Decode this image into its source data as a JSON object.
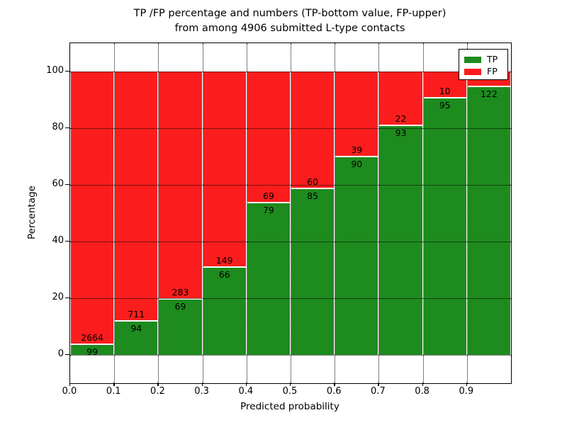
{
  "title": {
    "line1": "TP /FP percentage and numbers (TP-bottom value, FP-upper)",
    "line2": "from among 4906 submitted L-type contacts"
  },
  "colors": {
    "tp_green": "#1e8b1e",
    "fp_red": "#fb1d1d",
    "axis": "#000000",
    "background": "#ffffff"
  },
  "legend": {
    "entries": [
      {
        "label": "TP",
        "color": "#1e8b1e"
      },
      {
        "label": "FP",
        "color": "#fb1d1d"
      }
    ],
    "position": "upper right"
  },
  "chart_data": {
    "type": "bar",
    "stacked": true,
    "normalized_to_100_percent": true,
    "title": "TP /FP percentage and numbers (TP-bottom value, FP-upper) from among 4906 submitted L-type contacts",
    "total_contacts": 4906,
    "xlabel": "Predicted probability",
    "ylabel": "Percentage",
    "xlim": [
      0.0,
      1.0
    ],
    "ylim": [
      -10,
      110
    ],
    "xticks": [
      "0.0",
      "0.1",
      "0.2",
      "0.3",
      "0.4",
      "0.5",
      "0.6",
      "0.7",
      "0.8",
      "0.9"
    ],
    "yticks": [
      0,
      20,
      40,
      60,
      80,
      100
    ],
    "grid": "dotted, both axes, drawn over bars",
    "bin_width": 0.1,
    "series": [
      {
        "name": "TP",
        "color": "#1e8b1e",
        "counts": [
          99,
          94,
          69,
          66,
          79,
          85,
          90,
          93,
          95,
          122
        ],
        "pct": [
          3.58,
          11.68,
          19.6,
          30.7,
          53.38,
          58.62,
          69.77,
          80.87,
          90.48,
          94.5
        ]
      },
      {
        "name": "FP",
        "color": "#fb1d1d",
        "counts": [
          2664,
          711,
          283,
          149,
          69,
          60,
          39,
          22,
          10,
          null
        ],
        "pct": [
          96.42,
          88.32,
          80.4,
          69.3,
          46.62,
          41.38,
          30.23,
          19.13,
          9.52,
          5.5
        ],
        "last_count_label_hidden_behind_legend": true
      }
    ]
  }
}
